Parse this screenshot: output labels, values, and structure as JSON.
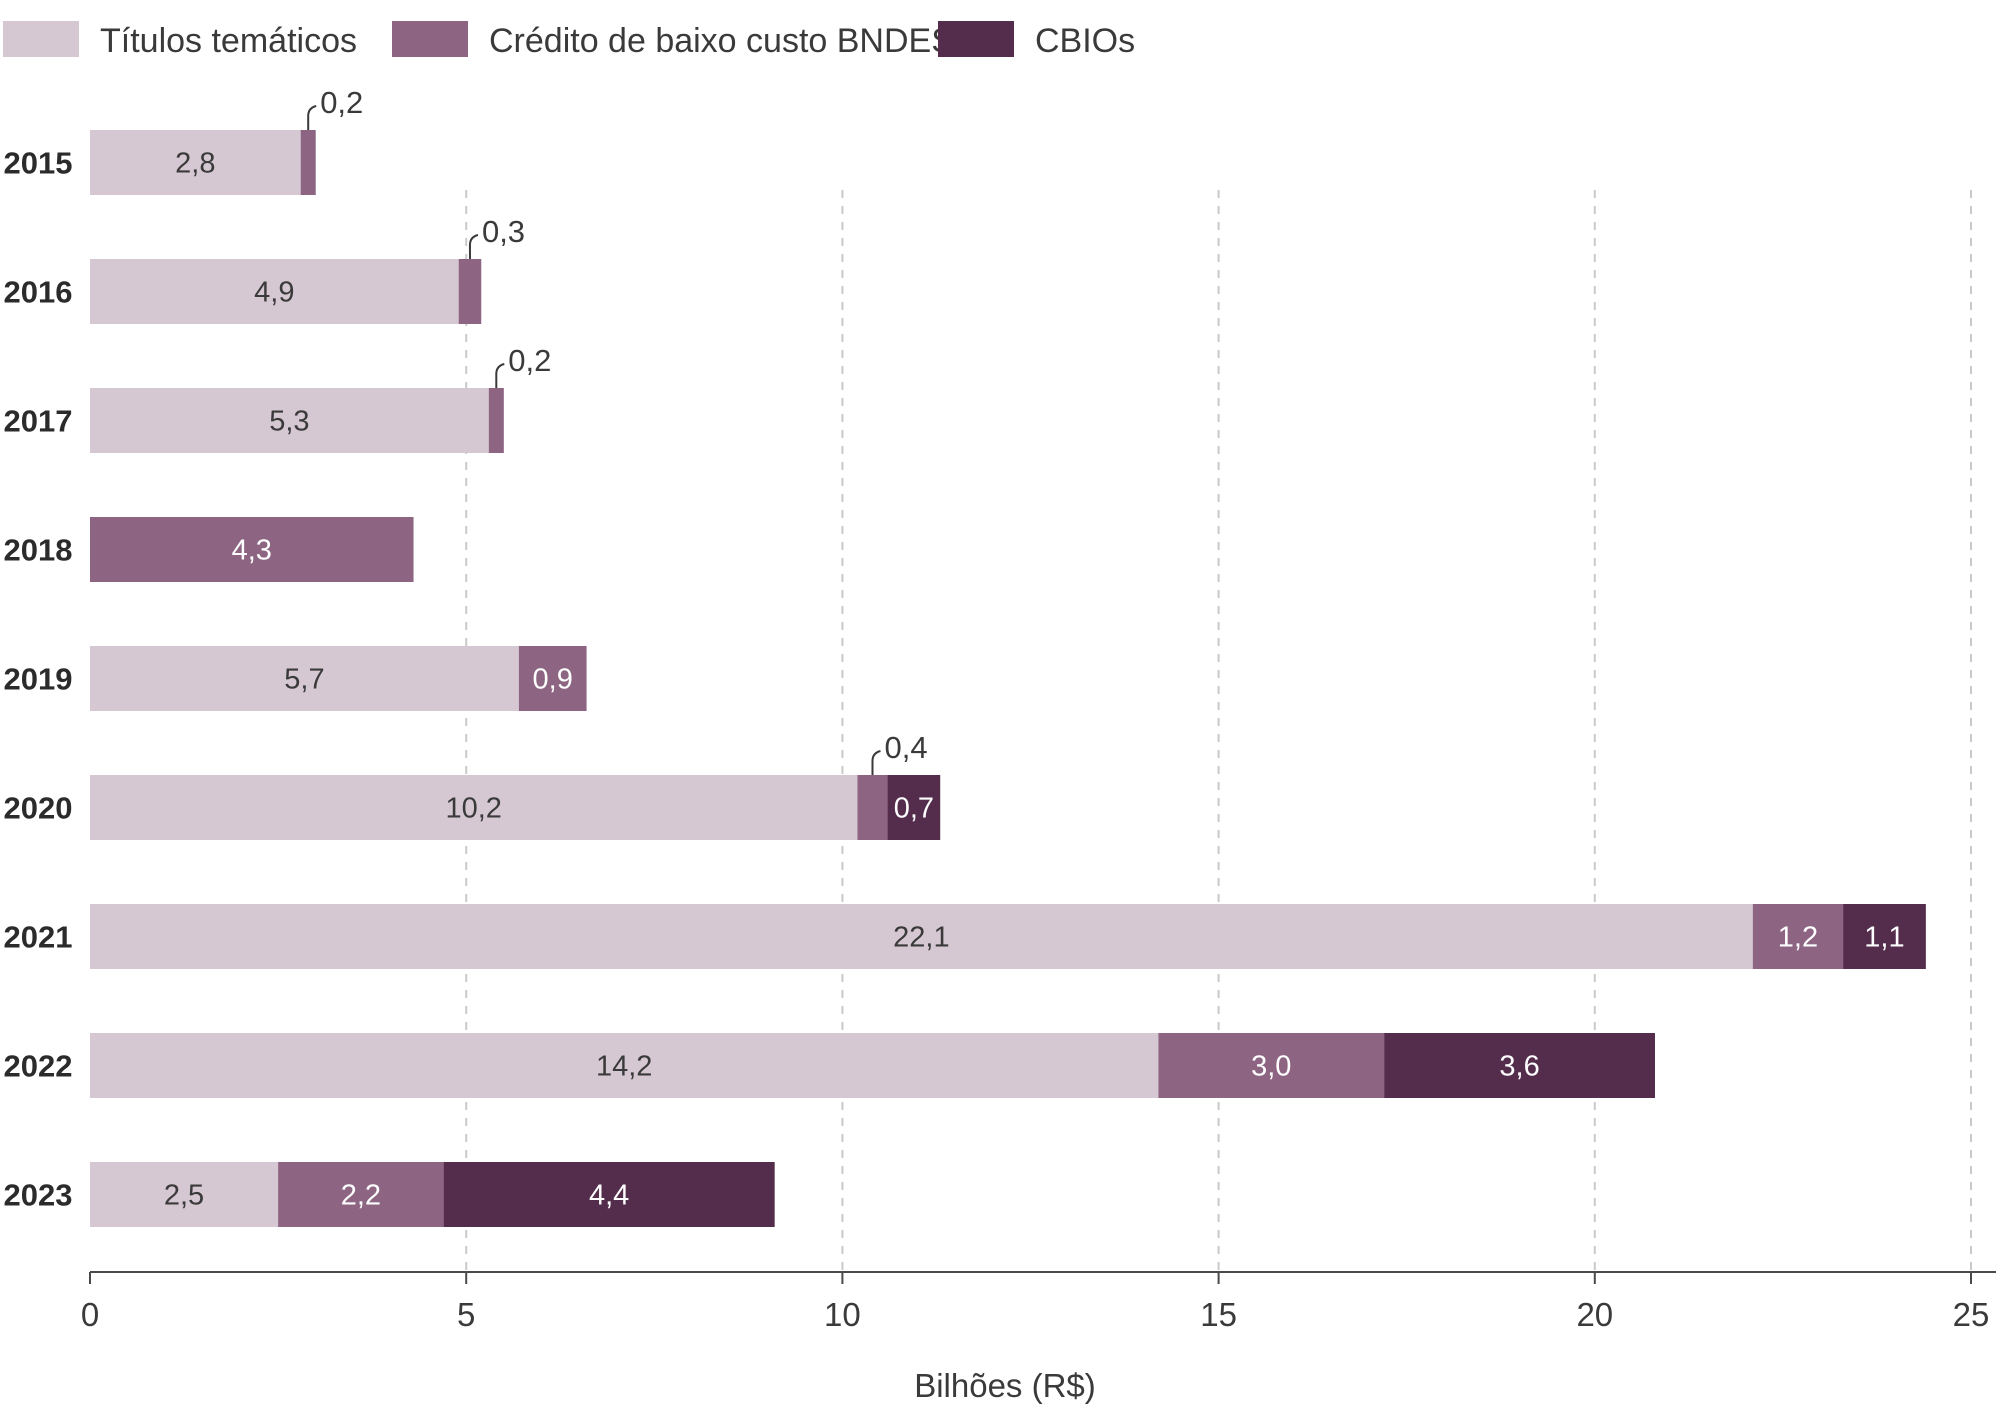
{
  "chart_data": {
    "type": "bar",
    "orientation": "horizontal",
    "stacked": true,
    "title": "",
    "xlabel": "Bilhões (R$)",
    "ylabel": "",
    "xlim": [
      0,
      25
    ],
    "x_ticks": [
      "0",
      "5",
      "10",
      "15",
      "20",
      "25"
    ],
    "grid": "vertical dashed",
    "legend_position": "top-left",
    "categories": [
      "2015",
      "2016",
      "2017",
      "2018",
      "2019",
      "2020",
      "2021",
      "2022",
      "2023"
    ],
    "series": [
      {
        "name": "Títulos temáticos",
        "color": "#d6c8d2",
        "label_color": "#3a3a3a",
        "values": [
          2.8,
          4.9,
          5.3,
          0,
          5.7,
          10.2,
          22.1,
          14.2,
          2.5
        ],
        "labels": [
          "2,8",
          "4,9",
          "5,3",
          "",
          "5,7",
          "10,2",
          "22,1",
          "14,2",
          "2,5"
        ]
      },
      {
        "name": "Crédito de baixo custo BNDES",
        "color": "#8d6582",
        "label_color": "#ffffff",
        "values": [
          0.2,
          0.3,
          0.2,
          4.3,
          0.9,
          0.4,
          1.2,
          3.0,
          2.2
        ],
        "labels": [
          "0,2",
          "0,3",
          "0,2",
          "4,3",
          "0,9",
          "0,4",
          "1,2",
          "3,0",
          "2,2"
        ]
      },
      {
        "name": "CBIOs",
        "color": "#542d4d",
        "label_color": "#ffffff",
        "values": [
          0,
          0,
          0,
          0,
          0,
          0.7,
          1.1,
          3.6,
          4.4
        ],
        "labels": [
          "",
          "",
          "",
          "",
          "",
          "0,7",
          "1,1",
          "3,6",
          "4,4"
        ]
      }
    ]
  }
}
